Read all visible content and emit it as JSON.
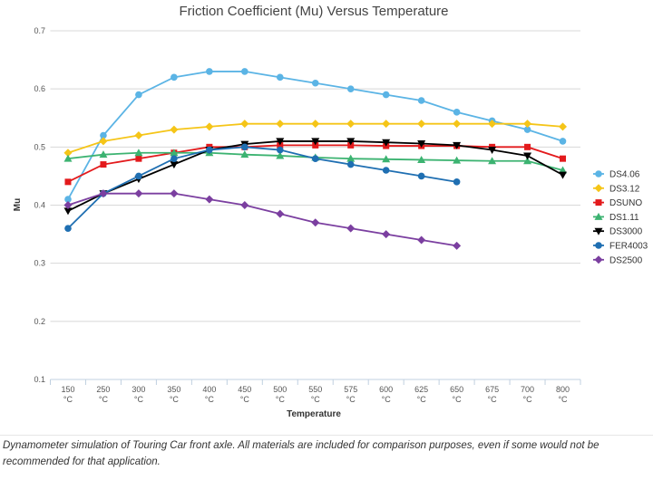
{
  "chart_data": {
    "type": "line",
    "title": "Friction Coefficient (Mu) Versus Temperature",
    "x_label": "Temperature",
    "y_label": "Mu",
    "categories": [
      "150 °C",
      "250 °C",
      "300 °C",
      "350 °C",
      "400 °C",
      "450 °C",
      "500 °C",
      "550 °C",
      "575 °C",
      "600 °C",
      "625 °C",
      "650 °C",
      "675 °C",
      "700 °C",
      "800 °C"
    ],
    "ylim": [
      0.1,
      0.7
    ],
    "yticks": [
      0.1,
      0.2,
      0.3,
      0.4,
      0.5,
      0.6,
      0.7
    ],
    "grid": true,
    "legend": "right",
    "series": [
      {
        "name": "DS4.06",
        "color": "#5bb4e5",
        "marker": "circle",
        "values": [
          0.41,
          0.52,
          0.59,
          0.62,
          0.63,
          0.63,
          0.62,
          0.61,
          0.6,
          0.59,
          0.58,
          0.56,
          0.545,
          0.53,
          0.51
        ]
      },
      {
        "name": "DS3.12",
        "color": "#f5c518",
        "marker": "diamond",
        "values": [
          0.49,
          0.51,
          0.52,
          0.53,
          0.535,
          0.54,
          0.54,
          0.54,
          0.54,
          0.54,
          0.54,
          0.54,
          0.54,
          0.54,
          0.535
        ]
      },
      {
        "name": "DSUNO",
        "color": "#e31a1c",
        "marker": "square",
        "values": [
          0.44,
          0.47,
          0.48,
          0.49,
          0.5,
          0.5,
          0.503,
          0.503,
          0.503,
          0.502,
          0.502,
          0.502,
          0.5,
          0.5,
          0.48
        ]
      },
      {
        "name": "DS1.11",
        "color": "#3cb371",
        "marker": "triangle",
        "values": [
          0.48,
          0.487,
          0.49,
          0.49,
          0.49,
          0.487,
          0.485,
          0.482,
          0.48,
          0.479,
          0.478,
          0.477,
          0.476,
          0.476,
          0.46
        ]
      },
      {
        "name": "DS3000",
        "color": "#000000",
        "marker": "triangle-down",
        "values": [
          0.39,
          0.42,
          0.445,
          0.47,
          0.495,
          0.505,
          0.51,
          0.51,
          0.51,
          0.508,
          0.506,
          0.503,
          0.495,
          0.485,
          0.452
        ]
      },
      {
        "name": "FER4003",
        "color": "#1f6fb2",
        "marker": "circle",
        "values": [
          0.36,
          0.42,
          0.45,
          0.48,
          0.495,
          0.5,
          0.495,
          0.48,
          0.47,
          0.46,
          0.45,
          0.44,
          null,
          null,
          null
        ]
      },
      {
        "name": "DS2500",
        "color": "#7b3fa0",
        "marker": "diamond",
        "values": [
          0.4,
          0.42,
          0.42,
          0.42,
          0.41,
          0.4,
          0.385,
          0.37,
          0.36,
          0.35,
          0.34,
          0.33,
          null,
          null,
          null
        ]
      }
    ]
  },
  "caption": "Dynamometer simulation of Touring Car front axle. All materials are included for comparison purposes, even if some would not be recommended for that application."
}
